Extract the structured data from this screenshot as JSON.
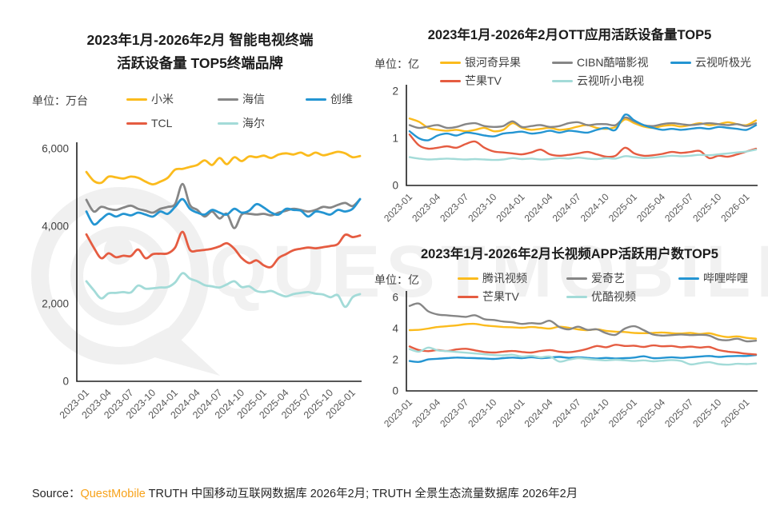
{
  "watermark": {
    "text": "QUESTMOBILE"
  },
  "source": {
    "label": "Source：",
    "brand": "QuestMobile",
    "brand_style": "color:#F7A21A",
    "rest": " TRUTH 中国移动互联网数据库 2026年2月; TRUTH 全景生态流量数据库 2026年2月"
  },
  "styles": {
    "axis_color": "#1f1f1f",
    "y_tick_color": "#404040",
    "x_tick_color": "#595959",
    "brand_orange": "#F7A21A",
    "watermark_color": "#f1f1f1"
  },
  "chart_data": [
    {
      "type": "line",
      "title_lines": [
        "2023年1月-2026年2月 智能电视终端",
        "活跃设备量 TOP5终端品牌"
      ],
      "unit_label": "单位：万台",
      "x_monthly_range": [
        "2023-01",
        "2026-02"
      ],
      "x_ticks": [
        "2023-01",
        "2023-04",
        "2023-07",
        "2023-10",
        "2024-01",
        "2024-04",
        "2024-07",
        "2024-10",
        "2025-01",
        "2025-04",
        "2025-07",
        "2025-10",
        "2026-01"
      ],
      "ylim": [
        0,
        6000
      ],
      "y_tick_values": [
        0,
        2000,
        4000,
        6000
      ],
      "y_ticks": [
        "0",
        "2,000",
        "4,000",
        "6,000"
      ],
      "grid": false,
      "legend_position": "top",
      "series": [
        {
          "name": "小米",
          "color": "#FBBB1D",
          "values": [
            5400,
            5170,
            5120,
            5280,
            5260,
            5230,
            5280,
            5250,
            5150,
            5080,
            5150,
            5250,
            5460,
            5480,
            5530,
            5580,
            5700,
            5580,
            5760,
            5600,
            5780,
            5680,
            5800,
            5780,
            5820,
            5760,
            5850,
            5880,
            5850,
            5900,
            5820,
            5900,
            5830,
            5870,
            5920,
            5880,
            5780,
            5810
          ]
        },
        {
          "name": "海信",
          "color": "#868686",
          "values": [
            4680,
            4380,
            4500,
            4450,
            4420,
            4480,
            4530,
            4450,
            4400,
            4350,
            4450,
            4500,
            4575,
            5090,
            4550,
            4420,
            4250,
            4380,
            4200,
            4320,
            3950,
            4300,
            4320,
            4300,
            4320,
            4280,
            4350,
            4400,
            4450,
            4420,
            4380,
            4420,
            4500,
            4480,
            4550,
            4600,
            4520,
            4700
          ]
        },
        {
          "name": "创维",
          "color": "#2495D2",
          "values": [
            4380,
            4050,
            4180,
            4320,
            4250,
            4320,
            4280,
            4350,
            4300,
            4250,
            4380,
            4320,
            4500,
            4700,
            4450,
            4350,
            4300,
            4420,
            4350,
            4300,
            4450,
            4350,
            4400,
            4570,
            4480,
            4350,
            4300,
            4450,
            4420,
            4400,
            4250,
            4380,
            4350,
            4300,
            4420,
            4380,
            4450,
            4700
          ]
        },
        {
          "name": "TCL",
          "color": "#E55C41",
          "values": [
            3790,
            3450,
            3175,
            3300,
            3200,
            3240,
            3230,
            3400,
            3175,
            3280,
            3290,
            3300,
            3450,
            3855,
            3390,
            3370,
            3390,
            3420,
            3480,
            3560,
            3420,
            3180,
            3050,
            3120,
            2990,
            2950,
            3180,
            3280,
            3380,
            3420,
            3450,
            3430,
            3460,
            3490,
            3540,
            3780,
            3720,
            3760
          ]
        },
        {
          "name": "海尔",
          "color": "#A3DBD8",
          "values": [
            2580,
            2350,
            2140,
            2270,
            2280,
            2300,
            2290,
            2470,
            2390,
            2400,
            2420,
            2430,
            2550,
            2790,
            2650,
            2580,
            2480,
            2450,
            2420,
            2500,
            2580,
            2430,
            2450,
            2330,
            2300,
            2330,
            2250,
            2190,
            2250,
            2280,
            2300,
            2260,
            2240,
            2170,
            2220,
            1920,
            2170,
            2250
          ]
        }
      ]
    },
    {
      "type": "line",
      "title_lines": [
        "2023年1月-2026年2月OTT应用活跃设备量TOP5"
      ],
      "unit_label": "单位：亿",
      "x_monthly_range": [
        "2023-01",
        "2026-02"
      ],
      "x_ticks": [
        "2023-01",
        "2023-04",
        "2023-07",
        "2023-10",
        "2024-01",
        "2024-04",
        "2024-07",
        "2024-10",
        "2025-01",
        "2025-04",
        "2025-07",
        "2025-10",
        "2026-01"
      ],
      "ylim": [
        0,
        2
      ],
      "y_tick_values": [
        0,
        1,
        2
      ],
      "y_ticks": [
        "0",
        "1",
        "2"
      ],
      "grid": false,
      "legend_position": "top",
      "series": [
        {
          "name": "银河奇异果",
          "color": "#FBBB1D",
          "values": [
            1.42,
            1.35,
            1.22,
            1.18,
            1.16,
            1.18,
            1.15,
            1.18,
            1.22,
            1.15,
            1.18,
            1.32,
            1.22,
            1.18,
            1.2,
            1.22,
            1.18,
            1.2,
            1.25,
            1.28,
            1.22,
            1.2,
            1.24,
            1.4,
            1.32,
            1.25,
            1.22,
            1.26,
            1.28,
            1.25,
            1.28,
            1.32,
            1.28,
            1.3,
            1.34,
            1.3,
            1.28,
            1.38
          ]
        },
        {
          "name": "CIBN酷喵影视",
          "color": "#868686",
          "values": [
            1.28,
            1.22,
            1.25,
            1.28,
            1.22,
            1.24,
            1.3,
            1.32,
            1.26,
            1.24,
            1.26,
            1.36,
            1.24,
            1.26,
            1.28,
            1.24,
            1.26,
            1.32,
            1.34,
            1.28,
            1.3,
            1.3,
            1.28,
            1.44,
            1.36,
            1.28,
            1.26,
            1.3,
            1.32,
            1.3,
            1.28,
            1.3,
            1.32,
            1.3,
            1.28,
            1.3,
            1.26,
            1.32
          ]
        },
        {
          "name": "云视听极光",
          "color": "#2495D2",
          "values": [
            1.15,
            1.0,
            0.96,
            1.06,
            1.1,
            1.06,
            1.12,
            1.1,
            1.06,
            1.04,
            1.1,
            1.12,
            1.14,
            1.1,
            1.12,
            1.16,
            1.12,
            1.16,
            1.14,
            1.12,
            1.18,
            1.22,
            1.18,
            1.5,
            1.38,
            1.28,
            1.22,
            1.18,
            1.2,
            1.18,
            1.2,
            1.22,
            1.2,
            1.24,
            1.22,
            1.2,
            1.18,
            1.28
          ]
        },
        {
          "name": "芒果TV",
          "color": "#E55C41",
          "values": [
            1.08,
            0.85,
            0.78,
            0.8,
            0.83,
            0.8,
            0.88,
            0.93,
            0.8,
            0.72,
            0.7,
            0.68,
            0.66,
            0.7,
            0.76,
            0.66,
            0.63,
            0.65,
            0.68,
            0.71,
            0.66,
            0.61,
            0.63,
            0.8,
            0.68,
            0.63,
            0.64,
            0.67,
            0.71,
            0.69,
            0.71,
            0.73,
            0.58,
            0.63,
            0.61,
            0.66,
            0.72,
            0.78
          ]
        },
        {
          "name": "云视听小电视",
          "color": "#A3DBD8",
          "values": [
            0.6,
            0.57,
            0.55,
            0.56,
            0.57,
            0.56,
            0.55,
            0.56,
            0.55,
            0.54,
            0.55,
            0.58,
            0.56,
            0.57,
            0.55,
            0.56,
            0.58,
            0.57,
            0.59,
            0.57,
            0.56,
            0.58,
            0.57,
            0.62,
            0.6,
            0.58,
            0.59,
            0.61,
            0.63,
            0.62,
            0.63,
            0.65,
            0.64,
            0.66,
            0.68,
            0.7,
            0.72,
            0.76
          ]
        }
      ]
    },
    {
      "type": "line",
      "title_lines": [
        "2023年1月-2026年2月长视频APP活跃用户数TOP5"
      ],
      "unit_label": "单位：亿",
      "x_monthly_range": [
        "2023-01",
        "2026-02"
      ],
      "x_ticks": [
        "2023-01",
        "2023-04",
        "2023-07",
        "2023-10",
        "2024-01",
        "2024-04",
        "2024-07",
        "2024-10",
        "2025-01",
        "2025-04",
        "2025-07",
        "2025-10",
        "2026-01"
      ],
      "ylim": [
        0,
        6
      ],
      "y_tick_values": [
        0,
        2,
        4,
        6
      ],
      "y_ticks": [
        "0",
        "2",
        "4",
        "6"
      ],
      "grid": false,
      "legend_position": "top",
      "series": [
        {
          "name": "腾讯视频",
          "color": "#FBBB1D",
          "values": [
            3.9,
            3.92,
            4.0,
            4.1,
            4.15,
            4.2,
            4.28,
            4.3,
            4.2,
            4.15,
            4.1,
            4.08,
            4.05,
            4.1,
            4.05,
            4.0,
            4.12,
            4.05,
            3.95,
            3.9,
            3.95,
            3.85,
            3.8,
            3.78,
            3.72,
            3.7,
            3.72,
            3.75,
            3.7,
            3.68,
            3.72,
            3.65,
            3.7,
            3.55,
            3.45,
            3.5,
            3.4,
            3.35
          ]
        },
        {
          "name": "爱奇艺",
          "color": "#868686",
          "values": [
            5.45,
            5.6,
            5.1,
            4.9,
            4.85,
            4.8,
            4.75,
            4.85,
            4.6,
            4.55,
            4.45,
            4.4,
            4.3,
            4.35,
            4.32,
            4.5,
            4.1,
            3.95,
            4.12,
            3.92,
            3.95,
            3.7,
            3.6,
            4.0,
            4.15,
            3.9,
            3.62,
            3.55,
            3.58,
            3.62,
            3.58,
            3.6,
            3.55,
            3.3,
            3.25,
            3.35,
            3.18,
            3.22
          ]
        },
        {
          "name": "哔哩哔哩",
          "color": "#2495D2",
          "values": [
            1.92,
            1.86,
            2.02,
            2.06,
            2.1,
            2.14,
            2.12,
            2.1,
            2.08,
            2.05,
            2.1,
            2.14,
            2.1,
            2.16,
            2.1,
            2.14,
            2.18,
            2.12,
            2.16,
            2.12,
            2.08,
            2.12,
            2.08,
            2.1,
            2.14,
            2.22,
            2.1,
            2.12,
            2.16,
            2.12,
            2.16,
            2.2,
            2.24,
            2.18,
            2.22,
            2.24,
            2.24,
            2.3
          ]
        },
        {
          "name": "芒果TV",
          "color": "#E55C41",
          "values": [
            2.85,
            2.62,
            2.55,
            2.62,
            2.56,
            2.66,
            2.7,
            2.6,
            2.5,
            2.46,
            2.52,
            2.56,
            2.5,
            2.46,
            2.56,
            2.62,
            2.52,
            2.48,
            2.56,
            2.7,
            2.88,
            2.8,
            2.96,
            2.88,
            2.9,
            2.82,
            2.92,
            2.86,
            2.88,
            2.8,
            2.84,
            2.78,
            2.82,
            2.62,
            2.52,
            2.46,
            2.38,
            2.34
          ]
        },
        {
          "name": "优酷视频",
          "color": "#A3DBD8",
          "values": [
            2.68,
            2.52,
            2.78,
            2.6,
            2.55,
            2.5,
            2.45,
            2.4,
            2.35,
            2.3,
            2.28,
            2.32,
            2.2,
            2.25,
            2.15,
            2.2,
            1.88,
            2.0,
            2.1,
            2.05,
            2.0,
            1.96,
            2.0,
            1.96,
            1.92,
            1.96,
            1.9,
            1.94,
            1.98,
            1.92,
            1.7,
            1.78,
            1.84,
            1.72,
            1.68,
            1.74,
            1.72,
            1.76
          ]
        }
      ]
    }
  ]
}
